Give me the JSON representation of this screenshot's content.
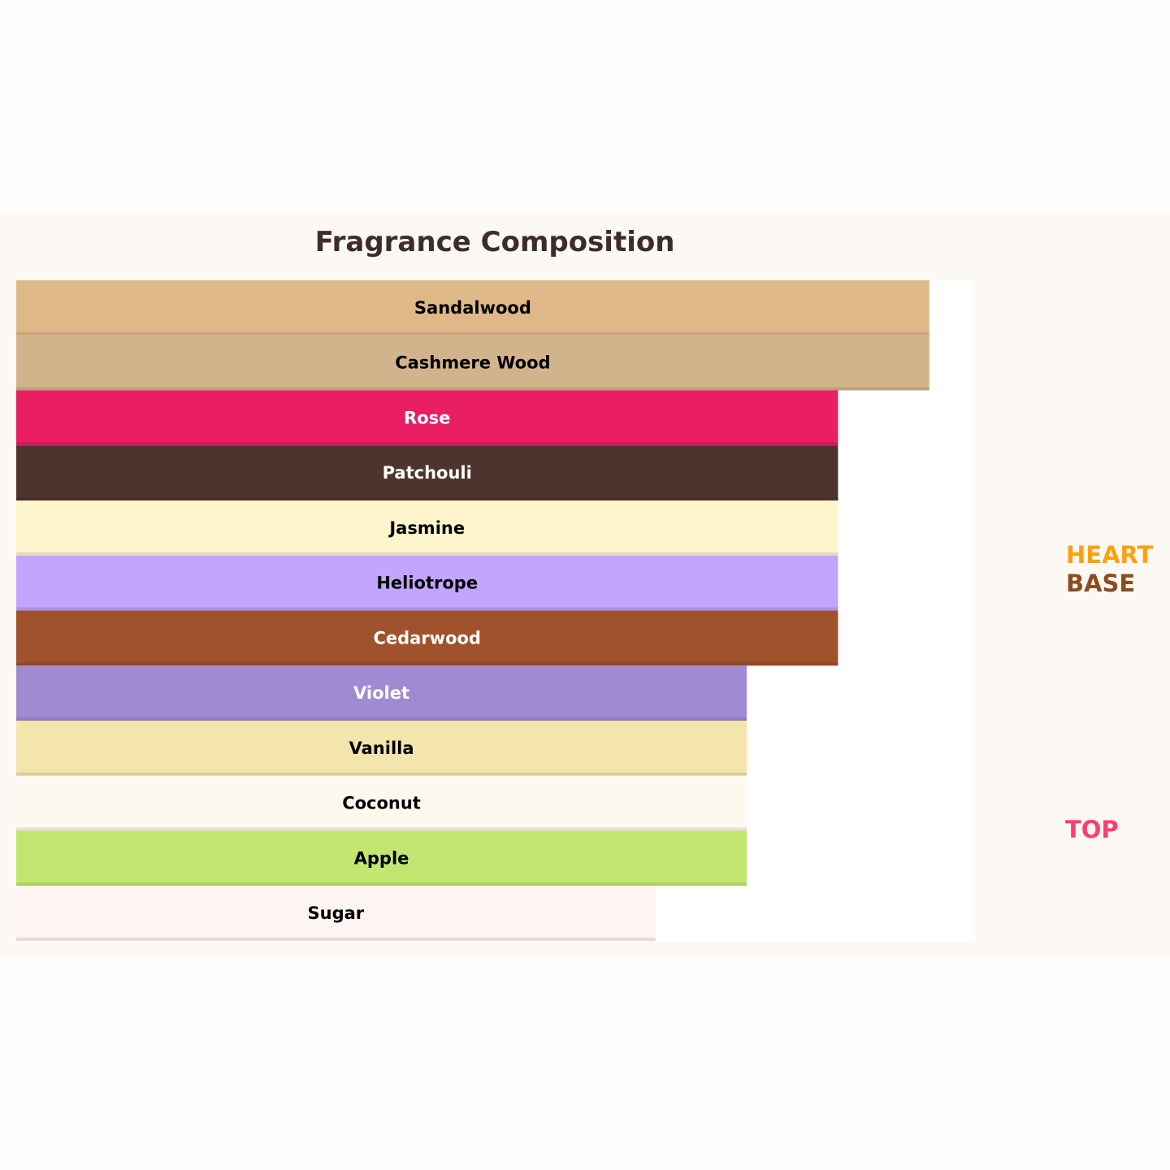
{
  "chart_data": {
    "type": "bar",
    "orientation": "horizontal",
    "title": "Fragrance Composition",
    "xlabel": "",
    "ylabel": "",
    "xlim": [
      0,
      10.5
    ],
    "grid": false,
    "categories": [
      "Sandalwood",
      "Cashmere Wood",
      "Rose",
      "Patchouli",
      "Jasmine",
      "Heliotrope",
      "Cedarwood",
      "Violet",
      "Vanilla",
      "Coconut",
      "Apple",
      "Sugar"
    ],
    "values": [
      10,
      10,
      9,
      9,
      9,
      9,
      9,
      8,
      8,
      8,
      8,
      7
    ],
    "colors": [
      "#deb887",
      "#d2b48c",
      "#e91e63",
      "#4e342e",
      "#fff5cc",
      "#c1a5fe",
      "#a0522d",
      "#a08bd2",
      "#f3e5ab",
      "#fdf9ee",
      "#c2e670",
      "#fff4f4"
    ],
    "label_colors": [
      "#000000",
      "#000000",
      "#ffffff",
      "#ffffff",
      "#000000",
      "#000000",
      "#ffffff",
      "#ffffff",
      "#000000",
      "#000000",
      "#000000",
      "#000000"
    ],
    "annotations": [
      {
        "text": "HEART",
        "color": "#ffa00f"
      },
      {
        "text": "BASE",
        "color": "#8b4c1f"
      },
      {
        "text": "TOP",
        "color": "#ff3d6e"
      }
    ]
  },
  "colors": {
    "figure_bg": "#fcf9f5",
    "plot_bg": "#ffffff",
    "title": "#3e2c2a"
  }
}
